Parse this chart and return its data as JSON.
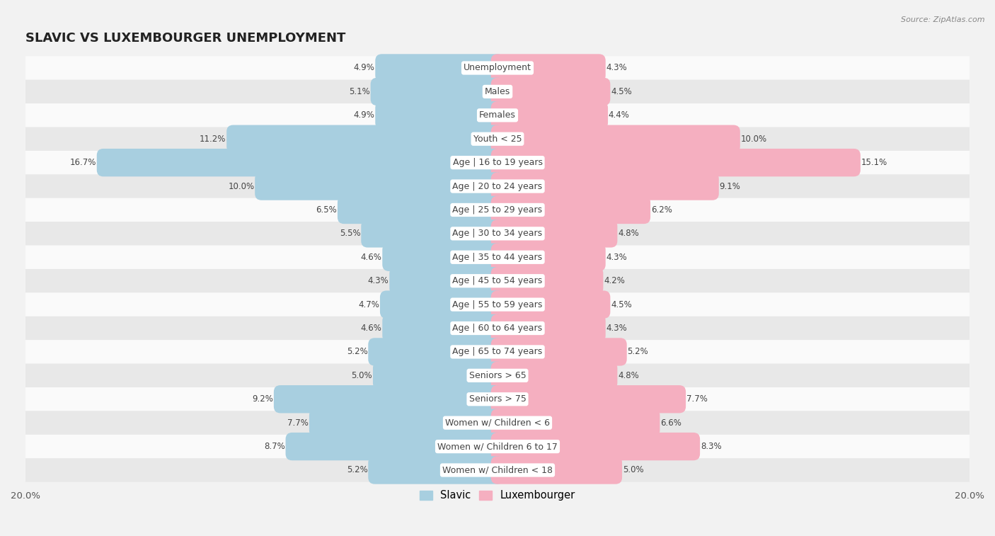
{
  "title": "SLAVIC VS LUXEMBOURGER UNEMPLOYMENT",
  "source": "Source: ZipAtlas.com",
  "categories": [
    "Unemployment",
    "Males",
    "Females",
    "Youth < 25",
    "Age | 16 to 19 years",
    "Age | 20 to 24 years",
    "Age | 25 to 29 years",
    "Age | 30 to 34 years",
    "Age | 35 to 44 years",
    "Age | 45 to 54 years",
    "Age | 55 to 59 years",
    "Age | 60 to 64 years",
    "Age | 65 to 74 years",
    "Seniors > 65",
    "Seniors > 75",
    "Women w/ Children < 6",
    "Women w/ Children 6 to 17",
    "Women w/ Children < 18"
  ],
  "slavic": [
    4.9,
    5.1,
    4.9,
    11.2,
    16.7,
    10.0,
    6.5,
    5.5,
    4.6,
    4.3,
    4.7,
    4.6,
    5.2,
    5.0,
    9.2,
    7.7,
    8.7,
    5.2
  ],
  "luxembourger": [
    4.3,
    4.5,
    4.4,
    10.0,
    15.1,
    9.1,
    6.2,
    4.8,
    4.3,
    4.2,
    4.5,
    4.3,
    5.2,
    4.8,
    7.7,
    6.6,
    8.3,
    5.0
  ],
  "slavic_color": "#a8cfe0",
  "luxembourger_color": "#f5afc0",
  "background_color": "#f2f2f2",
  "row_color_light": "#fafafa",
  "row_color_dark": "#e8e8e8",
  "max_val": 20.0,
  "bar_height": 0.62,
  "label_fontsize": 9.0,
  "title_fontsize": 13,
  "value_fontsize": 8.5
}
